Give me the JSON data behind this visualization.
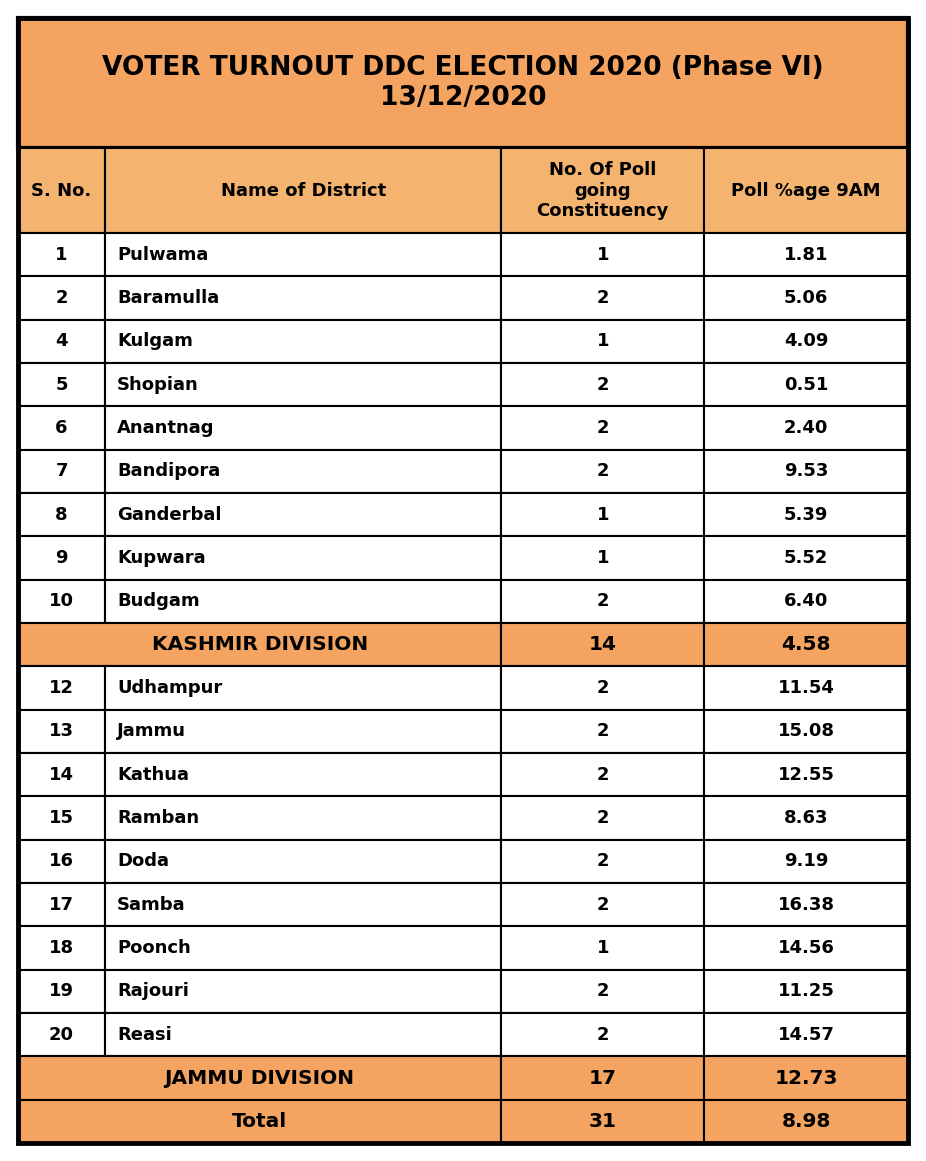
{
  "title_line1": "VOTER TURNOUT DDC ELECTION 2020 (Phase VI)",
  "title_line2": "13/12/2020",
  "title_bg": "#F4A460",
  "subheader_bg": "#F4B470",
  "row_bg_white": "#FFFFFF",
  "row_bg_orange": "#F4A460",
  "col_headers": [
    "S. No.",
    "Name of District",
    "No. Of Poll\ngoing\nConstituency",
    "Poll %age 9AM"
  ],
  "rows": [
    {
      "sno": "1",
      "district": "Pulwama",
      "poll_const": "1",
      "poll_pct": "1.81",
      "type": "data"
    },
    {
      "sno": "2",
      "district": "Baramulla",
      "poll_const": "2",
      "poll_pct": "5.06",
      "type": "data"
    },
    {
      "sno": "4",
      "district": "Kulgam",
      "poll_const": "1",
      "poll_pct": "4.09",
      "type": "data"
    },
    {
      "sno": "5",
      "district": "Shopian",
      "poll_const": "2",
      "poll_pct": "0.51",
      "type": "data"
    },
    {
      "sno": "6",
      "district": "Anantnag",
      "poll_const": "2",
      "poll_pct": "2.40",
      "type": "data"
    },
    {
      "sno": "7",
      "district": "Bandipora",
      "poll_const": "2",
      "poll_pct": "9.53",
      "type": "data"
    },
    {
      "sno": "8",
      "district": "Ganderbal",
      "poll_const": "1",
      "poll_pct": "5.39",
      "type": "data"
    },
    {
      "sno": "9",
      "district": "Kupwara",
      "poll_const": "1",
      "poll_pct": "5.52",
      "type": "data"
    },
    {
      "sno": "10",
      "district": "Budgam",
      "poll_const": "2",
      "poll_pct": "6.40",
      "type": "data"
    },
    {
      "sno": "",
      "district": "KASHMIR DIVISION",
      "poll_const": "14",
      "poll_pct": "4.58",
      "type": "division"
    },
    {
      "sno": "12",
      "district": "Udhampur",
      "poll_const": "2",
      "poll_pct": "11.54",
      "type": "data"
    },
    {
      "sno": "13",
      "district": "Jammu",
      "poll_const": "2",
      "poll_pct": "15.08",
      "type": "data"
    },
    {
      "sno": "14",
      "district": "Kathua",
      "poll_const": "2",
      "poll_pct": "12.55",
      "type": "data"
    },
    {
      "sno": "15",
      "district": "Ramban",
      "poll_const": "2",
      "poll_pct": "8.63",
      "type": "data"
    },
    {
      "sno": "16",
      "district": "Doda",
      "poll_const": "2",
      "poll_pct": "9.19",
      "type": "data"
    },
    {
      "sno": "17",
      "district": "Samba",
      "poll_const": "2",
      "poll_pct": "16.38",
      "type": "data"
    },
    {
      "sno": "18",
      "district": "Poonch",
      "poll_const": "1",
      "poll_pct": "14.56",
      "type": "data"
    },
    {
      "sno": "19",
      "district": "Rajouri",
      "poll_const": "2",
      "poll_pct": "11.25",
      "type": "data"
    },
    {
      "sno": "20",
      "district": "Reasi",
      "poll_const": "2",
      "poll_pct": "14.57",
      "type": "data"
    },
    {
      "sno": "",
      "district": "JAMMU DIVISION",
      "poll_const": "17",
      "poll_pct": "12.73",
      "type": "division"
    },
    {
      "sno": "",
      "district": "Total",
      "poll_const": "31",
      "poll_pct": "8.98",
      "type": "total"
    }
  ],
  "fig_width": 9.26,
  "fig_height": 11.61,
  "dpi": 100
}
